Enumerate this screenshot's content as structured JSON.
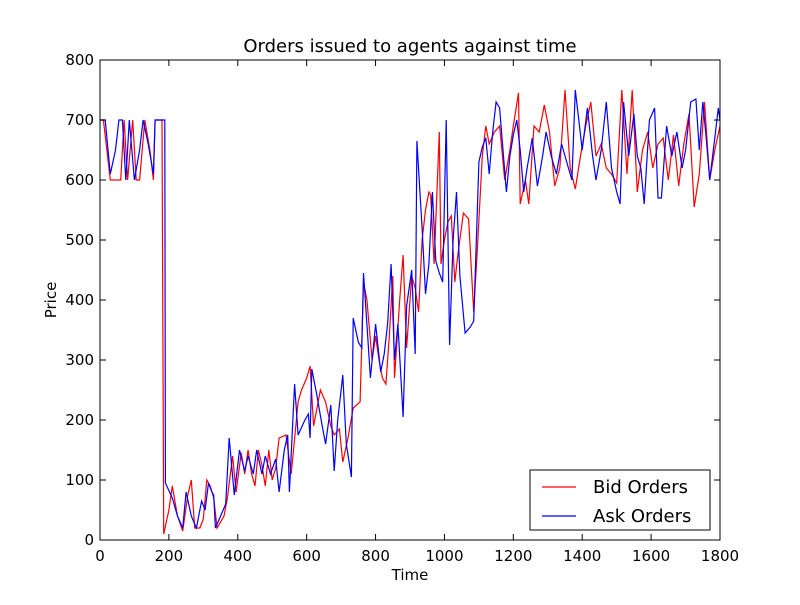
{
  "chart_data": {
    "type": "line",
    "title": "Orders issued to agents against time",
    "xlabel": "Time",
    "ylabel": "Price",
    "xlim": [
      0,
      1800
    ],
    "ylim": [
      0,
      800
    ],
    "xticks": [
      0,
      200,
      400,
      600,
      800,
      1000,
      1200,
      1400,
      1600,
      1800
    ],
    "yticks": [
      0,
      100,
      200,
      300,
      400,
      500,
      600,
      700,
      800
    ],
    "grid": false,
    "legend_position": "lower-right",
    "series": [
      {
        "name": "Bid Orders",
        "color": "#ff0000",
        "points": [
          [
            0,
            700
          ],
          [
            10,
            700
          ],
          [
            30,
            600
          ],
          [
            45,
            600
          ],
          [
            60,
            600
          ],
          [
            70,
            700
          ],
          [
            80,
            600
          ],
          [
            95,
            700
          ],
          [
            105,
            600
          ],
          [
            115,
            600
          ],
          [
            130,
            700
          ],
          [
            145,
            650
          ],
          [
            155,
            600
          ],
          [
            160,
            700
          ],
          [
            170,
            700
          ],
          [
            180,
            700
          ],
          [
            185,
            10
          ],
          [
            200,
            50
          ],
          [
            210,
            90
          ],
          [
            225,
            40
          ],
          [
            240,
            15
          ],
          [
            255,
            75
          ],
          [
            265,
            100
          ],
          [
            275,
            20
          ],
          [
            290,
            20
          ],
          [
            300,
            35
          ],
          [
            310,
            100
          ],
          [
            320,
            90
          ],
          [
            330,
            70
          ],
          [
            340,
            20
          ],
          [
            360,
            40
          ],
          [
            370,
            70
          ],
          [
            385,
            140
          ],
          [
            395,
            80
          ],
          [
            410,
            145
          ],
          [
            420,
            110
          ],
          [
            430,
            150
          ],
          [
            440,
            110
          ],
          [
            450,
            90
          ],
          [
            460,
            150
          ],
          [
            470,
            125
          ],
          [
            480,
            90
          ],
          [
            490,
            150
          ],
          [
            500,
            100
          ],
          [
            510,
            120
          ],
          [
            520,
            170
          ],
          [
            540,
            175
          ],
          [
            555,
            110
          ],
          [
            575,
            230
          ],
          [
            585,
            250
          ],
          [
            600,
            270
          ],
          [
            610,
            290
          ],
          [
            620,
            190
          ],
          [
            640,
            250
          ],
          [
            655,
            230
          ],
          [
            670,
            190
          ],
          [
            680,
            175
          ],
          [
            695,
            185
          ],
          [
            705,
            130
          ],
          [
            720,
            170
          ],
          [
            735,
            220
          ],
          [
            755,
            230
          ],
          [
            765,
            430
          ],
          [
            775,
            400
          ],
          [
            790,
            300
          ],
          [
            800,
            340
          ],
          [
            810,
            300
          ],
          [
            820,
            270
          ],
          [
            830,
            260
          ],
          [
            840,
            340
          ],
          [
            850,
            440
          ],
          [
            855,
            270
          ],
          [
            870,
            400
          ],
          [
            880,
            475
          ],
          [
            890,
            320
          ],
          [
            905,
            440
          ],
          [
            915,
            420
          ],
          [
            925,
            380
          ],
          [
            935,
            500
          ],
          [
            945,
            550
          ],
          [
            955,
            580
          ],
          [
            960,
            575
          ],
          [
            970,
            460
          ],
          [
            985,
            680
          ],
          [
            990,
            460
          ],
          [
            1000,
            500
          ],
          [
            1010,
            530
          ],
          [
            1020,
            540
          ],
          [
            1030,
            430
          ],
          [
            1040,
            480
          ],
          [
            1055,
            545
          ],
          [
            1070,
            535
          ],
          [
            1085,
            380
          ],
          [
            1095,
            480
          ],
          [
            1110,
            640
          ],
          [
            1120,
            690
          ],
          [
            1130,
            660
          ],
          [
            1145,
            680
          ],
          [
            1160,
            690
          ],
          [
            1175,
            600
          ],
          [
            1190,
            650
          ],
          [
            1200,
            690
          ],
          [
            1215,
            745
          ],
          [
            1220,
            560
          ],
          [
            1235,
            600
          ],
          [
            1245,
            560
          ],
          [
            1260,
            690
          ],
          [
            1275,
            680
          ],
          [
            1290,
            725
          ],
          [
            1305,
            680
          ],
          [
            1320,
            590
          ],
          [
            1335,
            620
          ],
          [
            1350,
            750
          ],
          [
            1365,
            620
          ],
          [
            1380,
            585
          ],
          [
            1395,
            640
          ],
          [
            1410,
            690
          ],
          [
            1425,
            730
          ],
          [
            1440,
            640
          ],
          [
            1455,
            660
          ],
          [
            1470,
            620
          ],
          [
            1485,
            610
          ],
          [
            1500,
            595
          ],
          [
            1515,
            750
          ],
          [
            1530,
            610
          ],
          [
            1545,
            750
          ],
          [
            1560,
            580
          ],
          [
            1575,
            650
          ],
          [
            1590,
            680
          ],
          [
            1605,
            620
          ],
          [
            1620,
            660
          ],
          [
            1635,
            670
          ],
          [
            1650,
            600
          ],
          [
            1665,
            675
          ],
          [
            1680,
            590
          ],
          [
            1695,
            660
          ],
          [
            1710,
            710
          ],
          [
            1725,
            555
          ],
          [
            1740,
            610
          ],
          [
            1755,
            730
          ],
          [
            1770,
            600
          ],
          [
            1785,
            650
          ],
          [
            1800,
            690
          ]
        ]
      },
      {
        "name": "Ask Orders",
        "color": "#0000ff",
        "points": [
          [
            0,
            700
          ],
          [
            15,
            700
          ],
          [
            30,
            610
          ],
          [
            45,
            650
          ],
          [
            55,
            700
          ],
          [
            65,
            700
          ],
          [
            75,
            600
          ],
          [
            85,
            700
          ],
          [
            100,
            600
          ],
          [
            115,
            650
          ],
          [
            125,
            700
          ],
          [
            140,
            660
          ],
          [
            155,
            610
          ],
          [
            160,
            700
          ],
          [
            170,
            700
          ],
          [
            180,
            700
          ],
          [
            188,
            700
          ],
          [
            190,
            95
          ],
          [
            210,
            70
          ],
          [
            225,
            40
          ],
          [
            240,
            20
          ],
          [
            250,
            80
          ],
          [
            265,
            40
          ],
          [
            280,
            20
          ],
          [
            295,
            65
          ],
          [
            305,
            50
          ],
          [
            315,
            95
          ],
          [
            325,
            80
          ],
          [
            330,
            75
          ],
          [
            335,
            20
          ],
          [
            350,
            40
          ],
          [
            365,
            60
          ],
          [
            375,
            170
          ],
          [
            390,
            75
          ],
          [
            405,
            150
          ],
          [
            420,
            115
          ],
          [
            430,
            140
          ],
          [
            445,
            110
          ],
          [
            455,
            150
          ],
          [
            470,
            110
          ],
          [
            480,
            140
          ],
          [
            495,
            110
          ],
          [
            510,
            135
          ],
          [
            520,
            80
          ],
          [
            535,
            150
          ],
          [
            545,
            175
          ],
          [
            550,
            80
          ],
          [
            565,
            260
          ],
          [
            575,
            175
          ],
          [
            595,
            200
          ],
          [
            605,
            210
          ],
          [
            610,
            170
          ],
          [
            615,
            285
          ],
          [
            630,
            240
          ],
          [
            645,
            190
          ],
          [
            655,
            160
          ],
          [
            670,
            225
          ],
          [
            680,
            115
          ],
          [
            690,
            200
          ],
          [
            705,
            275
          ],
          [
            715,
            160
          ],
          [
            730,
            105
          ],
          [
            735,
            370
          ],
          [
            750,
            330
          ],
          [
            760,
            320
          ],
          [
            765,
            445
          ],
          [
            775,
            360
          ],
          [
            785,
            270
          ],
          [
            800,
            360
          ],
          [
            815,
            280
          ],
          [
            825,
            310
          ],
          [
            835,
            360
          ],
          [
            845,
            460
          ],
          [
            855,
            300
          ],
          [
            865,
            360
          ],
          [
            880,
            205
          ],
          [
            890,
            390
          ],
          [
            905,
            450
          ],
          [
            915,
            310
          ],
          [
            920,
            665
          ],
          [
            935,
            520
          ],
          [
            945,
            410
          ],
          [
            955,
            460
          ],
          [
            965,
            580
          ],
          [
            975,
            465
          ],
          [
            985,
            445
          ],
          [
            995,
            430
          ],
          [
            1005,
            700
          ],
          [
            1015,
            325
          ],
          [
            1025,
            500
          ],
          [
            1035,
            580
          ],
          [
            1045,
            440
          ],
          [
            1060,
            345
          ],
          [
            1075,
            355
          ],
          [
            1085,
            365
          ],
          [
            1100,
            630
          ],
          [
            1110,
            655
          ],
          [
            1120,
            670
          ],
          [
            1130,
            610
          ],
          [
            1140,
            680
          ],
          [
            1150,
            730
          ],
          [
            1160,
            720
          ],
          [
            1170,
            650
          ],
          [
            1180,
            580
          ],
          [
            1190,
            640
          ],
          [
            1200,
            675
          ],
          [
            1210,
            700
          ],
          [
            1220,
            650
          ],
          [
            1230,
            580
          ],
          [
            1240,
            620
          ],
          [
            1255,
            670
          ],
          [
            1270,
            590
          ],
          [
            1285,
            640
          ],
          [
            1295,
            680
          ],
          [
            1310,
            640
          ],
          [
            1325,
            610
          ],
          [
            1340,
            660
          ],
          [
            1355,
            630
          ],
          [
            1370,
            600
          ],
          [
            1380,
            750
          ],
          [
            1390,
            700
          ],
          [
            1400,
            650
          ],
          [
            1415,
            720
          ],
          [
            1430,
            640
          ],
          [
            1440,
            600
          ],
          [
            1455,
            650
          ],
          [
            1470,
            730
          ],
          [
            1485,
            620
          ],
          [
            1500,
            580
          ],
          [
            1510,
            560
          ],
          [
            1520,
            730
          ],
          [
            1535,
            640
          ],
          [
            1550,
            710
          ],
          [
            1560,
            640
          ],
          [
            1570,
            620
          ],
          [
            1580,
            560
          ],
          [
            1595,
            700
          ],
          [
            1610,
            720
          ],
          [
            1620,
            570
          ],
          [
            1630,
            570
          ],
          [
            1645,
            690
          ],
          [
            1660,
            640
          ],
          [
            1675,
            680
          ],
          [
            1690,
            620
          ],
          [
            1700,
            650
          ],
          [
            1715,
            730
          ],
          [
            1730,
            735
          ],
          [
            1740,
            650
          ],
          [
            1750,
            730
          ],
          [
            1760,
            670
          ],
          [
            1770,
            600
          ],
          [
            1785,
            670
          ],
          [
            1795,
            720
          ],
          [
            1800,
            700
          ]
        ]
      }
    ]
  }
}
